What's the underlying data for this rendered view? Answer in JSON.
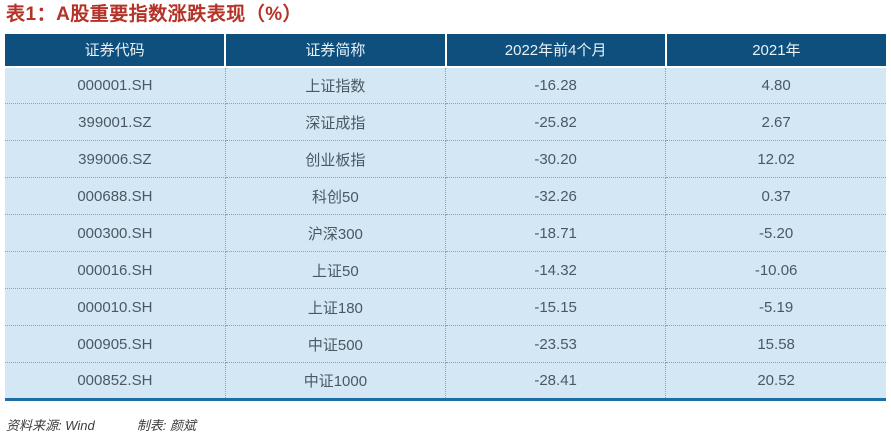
{
  "title": "表1：A股重要指数涨跌表现（%）",
  "table": {
    "headers": [
      "证券代码",
      "证券简称",
      "2022年前4个月",
      "2021年"
    ],
    "rows": [
      [
        "000001.SH",
        "上证指数",
        "-16.28",
        "4.80"
      ],
      [
        "399001.SZ",
        "深证成指",
        "-25.82",
        "2.67"
      ],
      [
        "399006.SZ",
        "创业板指",
        "-30.20",
        "12.02"
      ],
      [
        "000688.SH",
        "科创50",
        "-32.26",
        "0.37"
      ],
      [
        "000300.SH",
        "沪深300",
        "-18.71",
        "-5.20"
      ],
      [
        "000016.SH",
        "上证50",
        "-14.32",
        "-10.06"
      ],
      [
        "000010.SH",
        "上证180",
        "-15.15",
        "-5.19"
      ],
      [
        "000905.SH",
        "中证500",
        "-23.53",
        "15.58"
      ],
      [
        "000852.SH",
        "中证1000",
        "-28.41",
        "20.52"
      ]
    ]
  },
  "footer": {
    "source_label": "资料来源: Wind",
    "author_label": "制表: 颜斌"
  },
  "colors": {
    "title_red": "#b43227",
    "header_blue": "#0f4f7e",
    "row_blue": "#d3e8f4",
    "bottom_border_blue": "#1c6ea4",
    "body_text": "#4a5864"
  }
}
